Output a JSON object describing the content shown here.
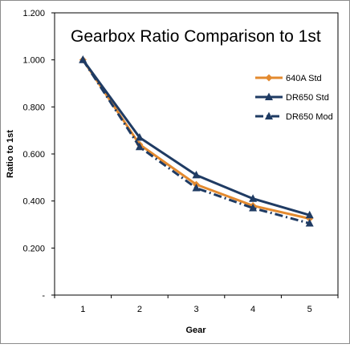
{
  "chart_data": {
    "type": "line",
    "title": "Gearbox Ratio Comparison to 1st",
    "xlabel": "Gear",
    "ylabel": "Ratio to 1st",
    "categories": [
      "1",
      "2",
      "3",
      "4",
      "5"
    ],
    "ylim": [
      0,
      1.2
    ],
    "y_ticks": [
      "-",
      "0.200",
      "0.400",
      "0.600",
      "0.800",
      "1.000",
      "1.200"
    ],
    "grid": false,
    "legend_position": "right",
    "series": [
      {
        "name": "640A Std",
        "values": [
          1.0,
          0.64,
          0.47,
          0.38,
          0.325
        ],
        "color": "#e38a2f",
        "marker": "diamond",
        "dash": "solid"
      },
      {
        "name": "DR650 Std",
        "values": [
          1.0,
          0.67,
          0.51,
          0.41,
          0.34
        ],
        "color": "#1f3b63",
        "marker": "triangle",
        "dash": "solid"
      },
      {
        "name": "DR650 Mod",
        "values": [
          1.0,
          0.63,
          0.455,
          0.37,
          0.305
        ],
        "color": "#1f3b63",
        "marker": "triangle",
        "dash": "dashdot"
      }
    ]
  }
}
